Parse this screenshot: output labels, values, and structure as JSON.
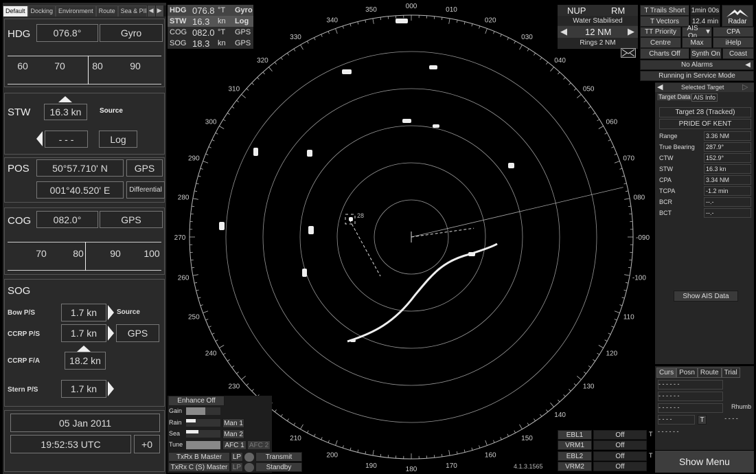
{
  "colors": {
    "background": "#000000",
    "panel": "#2a2a2a",
    "text": "#dddddd",
    "radar_ring": "#9a9a9a",
    "echo": "#eeeeee"
  },
  "left": {
    "tabs": [
      "Default",
      "Docking",
      "Environment",
      "Route",
      "Sea & PIP"
    ],
    "hdg": {
      "label": "HDG",
      "value": "076.8°",
      "source": "Gyro",
      "scale": [
        "60",
        "70",
        "80",
        "90"
      ]
    },
    "stw": {
      "label": "STW",
      "value": "16.3 kn",
      "source_label": "Source",
      "dashes": "- - -",
      "log": "Log"
    },
    "pos": {
      "label": "POS",
      "lat": "50°57.710' N",
      "lon": "001°40.520' E",
      "source": "GPS",
      "mode": "Differential"
    },
    "cog": {
      "label": "COG",
      "value": "082.0°",
      "source": "GPS",
      "scale": [
        "70",
        "80",
        "90",
        "100"
      ]
    },
    "sog": {
      "label": "SOG",
      "bow_label": "Bow P/S",
      "bow": "1.7 kn",
      "source_label": "Source",
      "ccrp_ps_label": "CCRP  P/S",
      "ccrp_ps": "1.7 kn",
      "gps": "GPS",
      "ccrp_fa_label": "CCRP F/A",
      "ccrp_fa": "18.2 kn",
      "stern_label": "Stern P/S",
      "stern": "1.7 kn"
    },
    "date": "05 Jan 2011",
    "time": "19:52:53 UTC",
    "tz": "+0"
  },
  "top_table": [
    {
      "name": "HDG",
      "value": "076.8",
      "unit": "°T",
      "src": "Gyro"
    },
    {
      "name": "STW",
      "value": "16.3",
      "unit": "kn",
      "src": "Log"
    },
    {
      "name": "COG",
      "value": "082.0",
      "unit": "°T",
      "src": "GPS"
    },
    {
      "name": "SOG",
      "value": "18.3",
      "unit": "kn",
      "src": "GPS"
    }
  ],
  "radar_header": {
    "nup": "NUP",
    "rm": "RM",
    "stab": "Water Stabilised",
    "range": "12 NM",
    "rings": "Rings 2 NM"
  },
  "top_right": {
    "trails": "T Trails Short",
    "trails_time": "1min 00s",
    "vectors": "T Vectors",
    "vectors_time": "12.4 min",
    "brand": "Radar",
    "tt_priority": "TT Priority",
    "ais_on": "AIS On",
    "cpa": "CPA",
    "centre": "Centre",
    "max": "Max",
    "ihelp": "iHelp",
    "charts_off": "Charts Off",
    "synth_on": "Synth On",
    "coast": "Coast",
    "alarms": "No Alarms",
    "service": "Running in Service Mode"
  },
  "target": {
    "title": "Selected Target",
    "tab1": "Target Data",
    "tab2": "AIS Info",
    "id": "Target 28 (Tracked)",
    "name": "PRIDE OF KENT",
    "rows": [
      {
        "k": "Range",
        "v": "3.36 NM"
      },
      {
        "k": "True Bearing",
        "v": "287.9°"
      },
      {
        "k": "CTW",
        "v": "152.9°"
      },
      {
        "k": "STW",
        "v": "16.3 kn"
      },
      {
        "k": "CPA",
        "v": "3.34 NM"
      },
      {
        "k": "TCPA",
        "v": "-1.2 min"
      },
      {
        "k": "BCR",
        "v": "--.-"
      },
      {
        "k": "BCT",
        "v": "--.-"
      }
    ],
    "show_ais": "Show AIS Data"
  },
  "cursor": {
    "tabs": [
      "Curs",
      "Posn",
      "Route",
      "Trial"
    ],
    "dash": "- - - - - -",
    "dash4": "- - - -",
    "rhumb": "Rhumb",
    "t": "T",
    "show_menu": "Show Menu"
  },
  "bottom_left": {
    "enhance": "Enhance Off",
    "gain": "Gain",
    "rain": "Rain",
    "sea": "Sea",
    "tune": "Tune",
    "man1": "Man 1",
    "man2": "Man 2",
    "afc1": "AFC 1",
    "afc2": "AFC 2",
    "txrx_b": "TxRx B Master",
    "txrx_c": "TxRx C (S) Master",
    "lp": "LP",
    "transmit": "Transmit",
    "standby": "Standby"
  },
  "ebl": {
    "ebl1": "EBL1",
    "vrm1": "VRM1",
    "ebl2": "EBL2",
    "vrm2": "VRM2",
    "off": "Off",
    "t": "T",
    "version": "4.1.3.1565"
  },
  "radar": {
    "bearing_labels": [
      "000",
      "010",
      "020",
      "030",
      "040",
      "050",
      "060",
      "070",
      "080",
      "-090",
      "-100",
      "110",
      "120",
      "130",
      "140",
      "150",
      "160",
      "170",
      "180",
      "190",
      "200",
      "210",
      "220",
      "230",
      "240",
      "250",
      "260",
      "270",
      "280",
      "290",
      "300",
      "310",
      "320",
      "330",
      "340",
      "350"
    ],
    "target_label": "28"
  }
}
